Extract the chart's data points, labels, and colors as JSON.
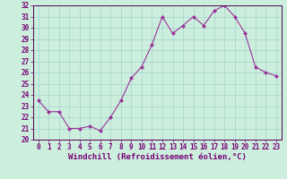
{
  "x": [
    0,
    1,
    2,
    3,
    4,
    5,
    6,
    7,
    8,
    9,
    10,
    11,
    12,
    13,
    14,
    15,
    16,
    17,
    18,
    19,
    20,
    21,
    22,
    23
  ],
  "y": [
    23.5,
    22.5,
    22.5,
    21.0,
    21.0,
    21.2,
    20.8,
    22.0,
    23.5,
    25.5,
    26.5,
    28.5,
    31.0,
    29.5,
    30.2,
    31.0,
    30.2,
    31.5,
    32.0,
    31.0,
    29.5,
    26.5,
    26.0,
    25.7
  ],
  "line_color": "#993399",
  "marker": "D",
  "marker_size": 2,
  "bg_color": "#cceedd",
  "grid_color": "#99cccc",
  "xlabel": "Windchill (Refroidissement éolien,°C)",
  "ylim": [
    20,
    32
  ],
  "xlim": [
    -0.5,
    23.5
  ],
  "yticks": [
    20,
    21,
    22,
    23,
    24,
    25,
    26,
    27,
    28,
    29,
    30,
    31,
    32
  ],
  "xticks": [
    0,
    1,
    2,
    3,
    4,
    5,
    6,
    7,
    8,
    9,
    10,
    11,
    12,
    13,
    14,
    15,
    16,
    17,
    18,
    19,
    20,
    21,
    22,
    23
  ],
  "tick_label_size": 5.5,
  "xlabel_size": 6.5,
  "axis_color": "#770077",
  "spine_color": "#550055"
}
